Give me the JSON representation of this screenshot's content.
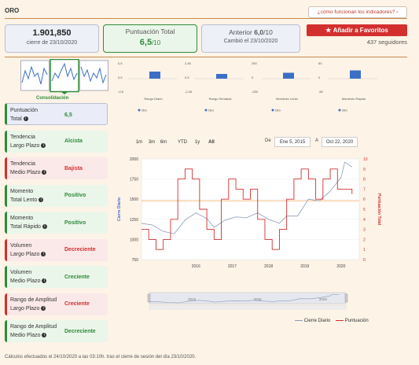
{
  "header": {
    "title": "ORO",
    "help_link": "¿cómo funcionan los indicadores?"
  },
  "stats": {
    "close_value": "1.901,850",
    "close_label": "cierre de 23/10/2020",
    "score_label": "Puntuación Total",
    "score_value": "6,5",
    "score_max": "/10",
    "prev_label": "Anterior",
    "prev_value": "6,0",
    "prev_max": "/10",
    "prev_changed": "Cambió el 23/10/2020"
  },
  "favorites": {
    "button_label": "Añadir a Favoritos",
    "followers": "437 seguidores"
  },
  "sparkline": {
    "label": "Consolidación"
  },
  "indicators": [
    {
      "name": [
        "Puntuación",
        "Total"
      ],
      "value": "6,5",
      "status": "neutral"
    },
    {
      "name": [
        "Tendencia",
        "Largo Plazo"
      ],
      "value": "Alcista",
      "status": "green"
    },
    {
      "name": [
        "Tendencia",
        "Medio Plazo"
      ],
      "value": "Bajista",
      "status": "red"
    },
    {
      "name": [
        "Momento",
        "Total Lento"
      ],
      "value": "Positivo",
      "status": "green"
    },
    {
      "name": [
        "Momento",
        "Total Rápido"
      ],
      "value": "Positivo",
      "status": "green"
    },
    {
      "name": [
        "Volumen",
        "Largo Plazo"
      ],
      "value": "Decreciente",
      "status": "red"
    },
    {
      "name": [
        "Volumen",
        "Medio Plazo"
      ],
      "value": "Creciente",
      "status": "green"
    },
    {
      "name": [
        "Rango de Amplitud",
        "Largo Plazo"
      ],
      "value": "Creciente",
      "status": "red"
    },
    {
      "name": [
        "Rango de Amplitud",
        "Medio Plazo"
      ],
      "value": "Decreciente",
      "status": "green"
    }
  ],
  "mini_charts": [
    {
      "title": "Rango Diario",
      "y_ticks": [
        "0,5",
        "0,5",
        "-0,5"
      ],
      "value": 0.3,
      "legend": "Oro"
    },
    {
      "title": "Rango Semanal",
      "y_ticks": [
        "2,45",
        "0,5",
        "-2,45"
      ],
      "value": 0.2,
      "legend": "Oro"
    },
    {
      "title": "Momento Lento",
      "y_ticks": [
        "250",
        "0",
        "-250"
      ],
      "value": 0.25,
      "legend": "Oro"
    },
    {
      "title": "Momento Rápido",
      "y_ticks": [
        "50",
        "0",
        "-50"
      ],
      "value": 0.35,
      "legend": "Oro"
    }
  ],
  "range_selector": {
    "buttons": [
      "1m",
      "3m",
      "6m",
      "YTD",
      "1y",
      "All"
    ],
    "active": "All",
    "from_label": "De",
    "from_date": "Ene 5, 2015",
    "to_label": "A",
    "to_date": "Oct 22, 2020"
  },
  "chart_data": {
    "type": "line",
    "title": "",
    "xlabel": "",
    "ylabel": "Cierre Diario",
    "y2label": "Puntuación Total",
    "x_ticks": [
      "2016",
      "2017",
      "2018",
      "2019",
      "2020"
    ],
    "y_ticks": [
      750,
      1000,
      1250,
      1500,
      1750,
      2000
    ],
    "y2_ticks": [
      0,
      1,
      2,
      3,
      4,
      5,
      6,
      7,
      8,
      9,
      10
    ],
    "ylim": [
      750,
      2000
    ],
    "y2lim": [
      0,
      10
    ],
    "reference_y": 1480,
    "series": [
      {
        "name": "Cierre Diario",
        "color": "#8a9bb5",
        "x": [
          2015.0,
          2015.3,
          2015.6,
          2015.9,
          2016.2,
          2016.5,
          2016.8,
          2017.0,
          2017.3,
          2017.6,
          2017.9,
          2018.2,
          2018.5,
          2018.8,
          2019.0,
          2019.3,
          2019.6,
          2019.9,
          2020.2,
          2020.5,
          2020.6,
          2020.8
        ],
        "values": [
          1200,
          1180,
          1100,
          1070,
          1240,
          1330,
          1260,
          1150,
          1240,
          1280,
          1270,
          1330,
          1250,
          1200,
          1290,
          1290,
          1500,
          1480,
          1600,
          1770,
          1960,
          1900
        ]
      },
      {
        "name": "Puntuación",
        "color": "#d32f2f",
        "x": [
          2015.0,
          2015.2,
          2015.4,
          2015.6,
          2015.8,
          2016.0,
          2016.2,
          2016.4,
          2016.6,
          2016.8,
          2017.0,
          2017.2,
          2017.4,
          2017.6,
          2017.8,
          2018.0,
          2018.2,
          2018.4,
          2018.6,
          2018.8,
          2019.0,
          2019.2,
          2019.4,
          2019.6,
          2019.8,
          2020.0,
          2020.2,
          2020.4,
          2020.6,
          2020.8
        ],
        "values": [
          3,
          2,
          1,
          2,
          4,
          8,
          9,
          8,
          5,
          3,
          2,
          6,
          8,
          7,
          6,
          7,
          4,
          2,
          1,
          3,
          6,
          8,
          9,
          8,
          6,
          8,
          9,
          7,
          7,
          6.5
        ]
      }
    ],
    "legend": [
      "Cierre Diario",
      "Puntuación"
    ],
    "legend_position": "bottom-right"
  },
  "navigator": {
    "x_ticks": [
      "2016",
      "2018",
      "2020"
    ]
  },
  "footnote": "Cálculos efectuados el 24/10/2020 a las 03:10h. tras el cierre de sesión del día 23/10/2020."
}
